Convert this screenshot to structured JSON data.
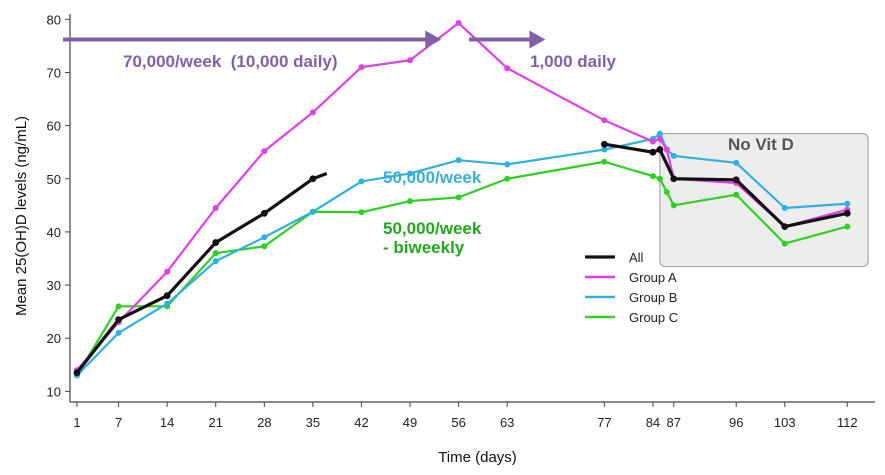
{
  "chart_data": {
    "type": "line",
    "xlabel": "Time (days)",
    "ylabel": "Mean 25(OH)D levels (ng/mL)",
    "xlim": [
      0,
      116
    ],
    "ylim": [
      8,
      81
    ],
    "x_ticks": [
      1,
      7,
      14,
      21,
      28,
      35,
      42,
      49,
      56,
      63,
      77,
      84,
      87,
      96,
      103,
      112
    ],
    "y_ticks": [
      10,
      20,
      30,
      40,
      50,
      60,
      70,
      80
    ],
    "series": [
      {
        "name": "All",
        "color": "#111111",
        "x": [
          1,
          7,
          14,
          21,
          28,
          35,
          37,
          75,
          77,
          84,
          85,
          87,
          96,
          103,
          112
        ],
        "y": [
          13.5,
          23.5,
          28,
          38,
          43.5,
          50,
          51,
          56.8,
          56.5,
          55,
          55.5,
          50,
          49.8,
          41,
          43.5
        ],
        "gaps_after": [
          6,
          7
        ],
        "markers": [
          0,
          1,
          2,
          3,
          4,
          5,
          8,
          9,
          10,
          11,
          12,
          13,
          14
        ]
      },
      {
        "name": "Group A",
        "color": "#e040e8",
        "x": [
          1,
          7,
          14,
          21,
          28,
          35,
          42,
          49,
          56,
          63,
          77,
          84,
          85,
          86,
          87,
          96,
          103,
          112
        ],
        "y": [
          14,
          23,
          32.5,
          44.5,
          55.2,
          62.5,
          71,
          72.3,
          79.3,
          70.8,
          61,
          57,
          57.5,
          55.5,
          50,
          49.2,
          41,
          44.2
        ]
      },
      {
        "name": "Group B",
        "color": "#30b0e0",
        "x": [
          1,
          7,
          14,
          21,
          28,
          35,
          42,
          49,
          56,
          63,
          77,
          84,
          85,
          86,
          87,
          96,
          103,
          112
        ],
        "y": [
          13,
          21,
          26.5,
          34.5,
          39,
          43.8,
          49.5,
          51,
          53.5,
          52.7,
          55.5,
          57.5,
          58.5,
          55.5,
          54.3,
          53,
          44.5,
          45.3
        ]
      },
      {
        "name": "Group C",
        "color": "#30d020",
        "x": [
          1,
          7,
          14,
          21,
          28,
          35,
          42,
          49,
          56,
          63,
          77,
          84,
          85,
          86,
          87,
          96,
          103,
          112
        ],
        "y": [
          13,
          26,
          26,
          36,
          37.3,
          43.8,
          43.7,
          45.8,
          46.5,
          50,
          53.2,
          50.5,
          50,
          47.5,
          45,
          47,
          37.8,
          41
        ]
      }
    ],
    "legend": {
      "placement": "right-center",
      "entries": [
        "All",
        "Group A",
        "Group B",
        "Group C"
      ]
    },
    "annotations": {
      "phase1": "70,000/week  (10,000 daily)",
      "phase2": "1,000 daily",
      "no_vitd": "No Vit D",
      "group_b": "50,000/week",
      "group_c_line1": "50,000/week",
      "group_c_line2": "- biweekly"
    },
    "arrows": [
      {
        "name": "phase1-arrow",
        "x_from": -1,
        "x_to": 53.5,
        "y": 76.2
      },
      {
        "name": "phase2-arrow",
        "x_from": 57.5,
        "x_to": 68.5,
        "y": 76.2
      }
    ],
    "shaded_region": {
      "x_from": 85,
      "x_to": 115,
      "y_from": 33.5,
      "y_to": 58.5
    },
    "colors": {
      "arrow": "#8060a8",
      "shade_fill": "#ededed",
      "shade_stroke": "#9a9a9a",
      "axis": "#444444"
    }
  }
}
